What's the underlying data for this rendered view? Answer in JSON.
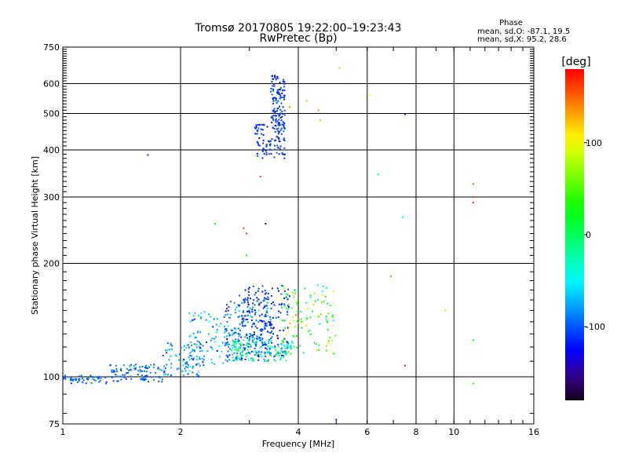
{
  "chart_data": {
    "type": "scatter",
    "title": "Tromsø 20170805 19:22:00–19:23:43",
    "subtitle": "RwPretec (Bp)",
    "xlabel": "Frequency [MHz]",
    "ylabel": "Stationary phase Virtual Height [km]",
    "x_scale": "log",
    "y_scale": "log",
    "xlim": [
      1,
      16
    ],
    "ylim": [
      75,
      750
    ],
    "x_ticks": [
      1,
      2,
      4,
      6,
      8,
      10,
      16
    ],
    "x_tick_labels": [
      "1",
      "2",
      "4",
      "6",
      "8",
      "10",
      "16"
    ],
    "y_ticks": [
      75,
      100,
      200,
      300,
      400,
      500,
      600,
      750
    ],
    "y_tick_labels": [
      "75",
      "100",
      "200",
      "300",
      "400",
      "500",
      "600",
      "750"
    ],
    "grid": true,
    "stats": {
      "heading": "Phase",
      "line_o": "mean, sd,O: -87.1, 19.5",
      "line_x": "mean, sd,X:  95.2, 28.6"
    },
    "colorbar": {
      "label": "[deg]",
      "range": [
        -180,
        180
      ],
      "ticks": [
        100,
        0,
        -100
      ],
      "tick_labels": [
        "100",
        "0",
        "-100"
      ]
    },
    "colors": {
      "axis": "#000000",
      "background": "#ffffff"
    },
    "clusters": [
      {
        "xmin": 1.0,
        "xmax": 1.3,
        "ymin": 96,
        "ymax": 101,
        "n": 50,
        "phase_mean": -95,
        "phase_sd": 15
      },
      {
        "xmin": 1.3,
        "xmax": 1.8,
        "ymin": 97,
        "ymax": 108,
        "n": 90,
        "phase_mean": -95,
        "phase_sd": 15
      },
      {
        "xmin": 1.8,
        "xmax": 2.3,
        "ymin": 100,
        "ymax": 123,
        "n": 90,
        "phase_mean": -85,
        "phase_sd": 25
      },
      {
        "xmin": 2.1,
        "xmax": 2.7,
        "ymin": 108,
        "ymax": 150,
        "n": 90,
        "phase_mean": -75,
        "phase_sd": 35
      },
      {
        "xmin": 2.6,
        "xmax": 3.4,
        "ymin": 110,
        "ymax": 160,
        "n": 180,
        "phase_mean": -90,
        "phase_sd": 25
      },
      {
        "xmin": 2.8,
        "xmax": 3.8,
        "ymin": 113,
        "ymax": 175,
        "n": 190,
        "phase_mean": -110,
        "phase_sd": 15
      },
      {
        "xmin": 2.7,
        "xmax": 3.9,
        "ymin": 110,
        "ymax": 125,
        "n": 130,
        "phase_mean": -20,
        "phase_sd": 45
      },
      {
        "xmin": 3.6,
        "xmax": 5.0,
        "ymin": 115,
        "ymax": 175,
        "n": 110,
        "phase_mean": 30,
        "phase_sd": 70
      },
      {
        "xmin": 3.1,
        "xmax": 3.7,
        "ymin": 380,
        "ymax": 470,
        "n": 110,
        "phase_mean": -110,
        "phase_sd": 12
      },
      {
        "xmin": 3.4,
        "xmax": 3.7,
        "ymin": 470,
        "ymax": 640,
        "n": 110,
        "phase_mean": -110,
        "phase_sd": 12
      }
    ],
    "scattered_points": [
      {
        "x": 1.65,
        "y": 388,
        "phase": -110
      },
      {
        "x": 2.45,
        "y": 255,
        "phase": 20
      },
      {
        "x": 2.9,
        "y": 248,
        "phase": 160
      },
      {
        "x": 2.95,
        "y": 240,
        "phase": 170
      },
      {
        "x": 2.95,
        "y": 210,
        "phase": 25
      },
      {
        "x": 3.2,
        "y": 340,
        "phase": 160
      },
      {
        "x": 3.3,
        "y": 255,
        "phase": -180
      },
      {
        "x": 3.8,
        "y": 520,
        "phase": 140
      },
      {
        "x": 4.2,
        "y": 540,
        "phase": 130
      },
      {
        "x": 4.5,
        "y": 510,
        "phase": 140
      },
      {
        "x": 4.55,
        "y": 480,
        "phase": 120
      },
      {
        "x": 5.1,
        "y": 660,
        "phase": 120
      },
      {
        "x": 6.1,
        "y": 560,
        "phase": 100
      },
      {
        "x": 6.4,
        "y": 345,
        "phase": -30
      },
      {
        "x": 7.5,
        "y": 498,
        "phase": -130
      },
      {
        "x": 7.4,
        "y": 265,
        "phase": -40
      },
      {
        "x": 6.9,
        "y": 185,
        "phase": 140
      },
      {
        "x": 9.5,
        "y": 150,
        "phase": 120
      },
      {
        "x": 11.2,
        "y": 325,
        "phase": 150
      },
      {
        "x": 11.2,
        "y": 300,
        "phase": 160
      },
      {
        "x": 11.2,
        "y": 290,
        "phase": 170
      },
      {
        "x": 11.2,
        "y": 125,
        "phase": 30
      },
      {
        "x": 11.2,
        "y": 96,
        "phase": 40
      },
      {
        "x": 7.5,
        "y": 107,
        "phase": 170
      },
      {
        "x": 5.0,
        "y": 77,
        "phase": -110
      }
    ]
  }
}
